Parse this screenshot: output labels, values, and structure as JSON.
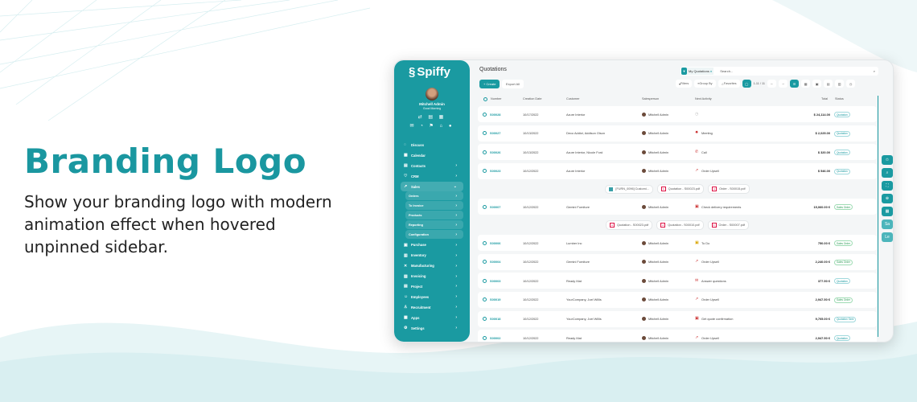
{
  "hero": {
    "title": "Branding Logo",
    "subtitle": "Show your branding logo with modern animation effect when hovered unpinned sidebar."
  },
  "colors": {
    "brand": "#1a9aa1",
    "headline": "#1a97a0"
  },
  "sidebar": {
    "logo": "Spiffy",
    "user_name": "Mitchell Admin",
    "greeting": "Good Morning",
    "items": [
      {
        "label": "Discuss",
        "icon": "chat-icon",
        "chevron": false
      },
      {
        "label": "Calendar",
        "icon": "calendar-icon",
        "chevron": false
      },
      {
        "label": "Contacts",
        "icon": "contacts-icon",
        "chevron": true
      },
      {
        "label": "CRM",
        "icon": "crm-icon",
        "chevron": true
      },
      {
        "label": "Sales",
        "icon": "chart-icon",
        "chevron": true,
        "active": true
      },
      {
        "label": "Orders",
        "sub": true
      },
      {
        "label": "To Invoice",
        "sub": true
      },
      {
        "label": "Products",
        "sub": true
      },
      {
        "label": "Reporting",
        "sub": true
      },
      {
        "label": "Configuration",
        "sub": true
      },
      {
        "label": "Purchase",
        "icon": "purchase-icon",
        "chevron": true
      },
      {
        "label": "Inventory",
        "icon": "inventory-icon",
        "chevron": true
      },
      {
        "label": "Manufacturing",
        "icon": "tools-icon",
        "chevron": true
      },
      {
        "label": "Invoicing",
        "icon": "invoice-icon",
        "chevron": true
      },
      {
        "label": "Project",
        "icon": "project-icon",
        "chevron": true
      },
      {
        "label": "Employees",
        "icon": "employees-icon",
        "chevron": true
      },
      {
        "label": "Recruitment",
        "icon": "recruitment-icon",
        "chevron": true
      },
      {
        "label": "Apps",
        "icon": "apps-icon",
        "chevron": true
      },
      {
        "label": "Settings",
        "icon": "gear-icon",
        "chevron": true
      }
    ]
  },
  "main": {
    "title": "Quotations",
    "create_label": "+ Create",
    "export_label": "Export All",
    "search": {
      "facet": "My Quotations",
      "placeholder": "Search..."
    },
    "toolbar": {
      "filters": "Filters",
      "group_by": "Group By",
      "favorites": "Favorites",
      "pager": "1-11 / 11"
    },
    "columns": [
      "Number",
      "Creation Date",
      "Customer",
      "Salesperson",
      "Next Activity",
      "Total",
      "Status"
    ],
    "rows": [
      {
        "type": "row",
        "number": "S00028",
        "date": "10/17/2022",
        "customer": "Azure Interior",
        "salesperson": "Mitchell Admin",
        "activity": "",
        "activity_icon": "clock-icon",
        "total": "$ 24,114.00",
        "status": "Quotation"
      },
      {
        "type": "row",
        "number": "S00027",
        "date": "10/13/2022",
        "customer": "Deco Addict, Addison Olson",
        "salesperson": "Mitchell Admin",
        "activity": "Meeting",
        "activity_icon": "meeting-icon",
        "total": "$ 2,025.00",
        "status": "Quotation"
      },
      {
        "type": "row",
        "number": "S00026",
        "date": "10/13/2022",
        "customer": "Azure Interior, Nicole Ford",
        "salesperson": "Mitchell Admin",
        "activity": "Call",
        "activity_icon": "phone-icon",
        "total": "$ 320.00",
        "status": "Quotation"
      },
      {
        "type": "row",
        "number": "S00023",
        "date": "10/12/2022",
        "customer": "Azure Interior",
        "salesperson": "Mitchell Admin",
        "activity": "Order Upsell",
        "activity_icon": "upsell-icon",
        "total": "$ 546.00",
        "status": "Quotation"
      },
      {
        "type": "att",
        "files": [
          "[FURN_0096] Customi...",
          "Quotation - S00023.pdf",
          "Order - S00015.pdf"
        ]
      },
      {
        "type": "row",
        "number": "S00007",
        "date": "10/12/2022",
        "customer": "Gemini Furniture",
        "salesperson": "Mitchell Admin",
        "activity": "Check delivery requirements",
        "activity_icon": "calendar-icon",
        "total": "15,060.00 €",
        "status": "Sales Order"
      },
      {
        "type": "att",
        "files": [
          "Quotation - S00023.pdf",
          "Quotation - S00010.pdf",
          "Order - S00007.pdf"
        ]
      },
      {
        "type": "row",
        "number": "S00006",
        "date": "10/12/2022",
        "customer": "Lumber Inc",
        "salesperson": "Mitchell Admin",
        "activity": "To Do",
        "activity_icon": "todo-icon",
        "total": "750.00 €",
        "status": "Sales Order"
      },
      {
        "type": "row",
        "number": "S00004",
        "date": "10/12/2022",
        "customer": "Gemini Furniture",
        "salesperson": "Mitchell Admin",
        "activity": "Order Upsell",
        "activity_icon": "upsell-icon",
        "total": "2,240.00 €",
        "status": "Sales Order"
      },
      {
        "type": "row",
        "number": "S00003",
        "date": "10/12/2022",
        "customer": "Ready Mat",
        "salesperson": "Mitchell Admin",
        "activity": "Answer questions",
        "activity_icon": "mail-icon",
        "total": "377.50 €",
        "status": "Quotation"
      },
      {
        "type": "row",
        "number": "S00019",
        "date": "10/12/2022",
        "customer": "YourCompany, Joel Willis",
        "salesperson": "Mitchell Admin",
        "activity": "Order Upsell",
        "activity_icon": "upsell-icon",
        "total": "2,947.50 €",
        "status": "Sales Order"
      },
      {
        "type": "row",
        "number": "S00018",
        "date": "10/12/2022",
        "customer": "YourCompany, Joel Willis",
        "salesperson": "Mitchell Admin",
        "activity": "Get quote confirmation",
        "activity_icon": "calendar-icon",
        "total": "9,705.00 €",
        "status": "Quotation Sent"
      },
      {
        "type": "row",
        "number": "S00002",
        "date": "10/12/2022",
        "customer": "Ready Mat",
        "salesperson": "Mitchell Admin",
        "activity": "Order Upsell",
        "activity_icon": "upsell-icon",
        "total": "2,947.50 €",
        "status": "Quotation"
      }
    ]
  },
  "floating": {
    "buttons": [
      {
        "icon": "star-icon"
      },
      {
        "icon": "search-icon"
      },
      {
        "icon": "fullscreen-icon"
      },
      {
        "icon": "zoom-icon"
      },
      {
        "icon": "grid-icon"
      },
      {
        "label": "Sa"
      },
      {
        "label": "Le"
      }
    ]
  }
}
